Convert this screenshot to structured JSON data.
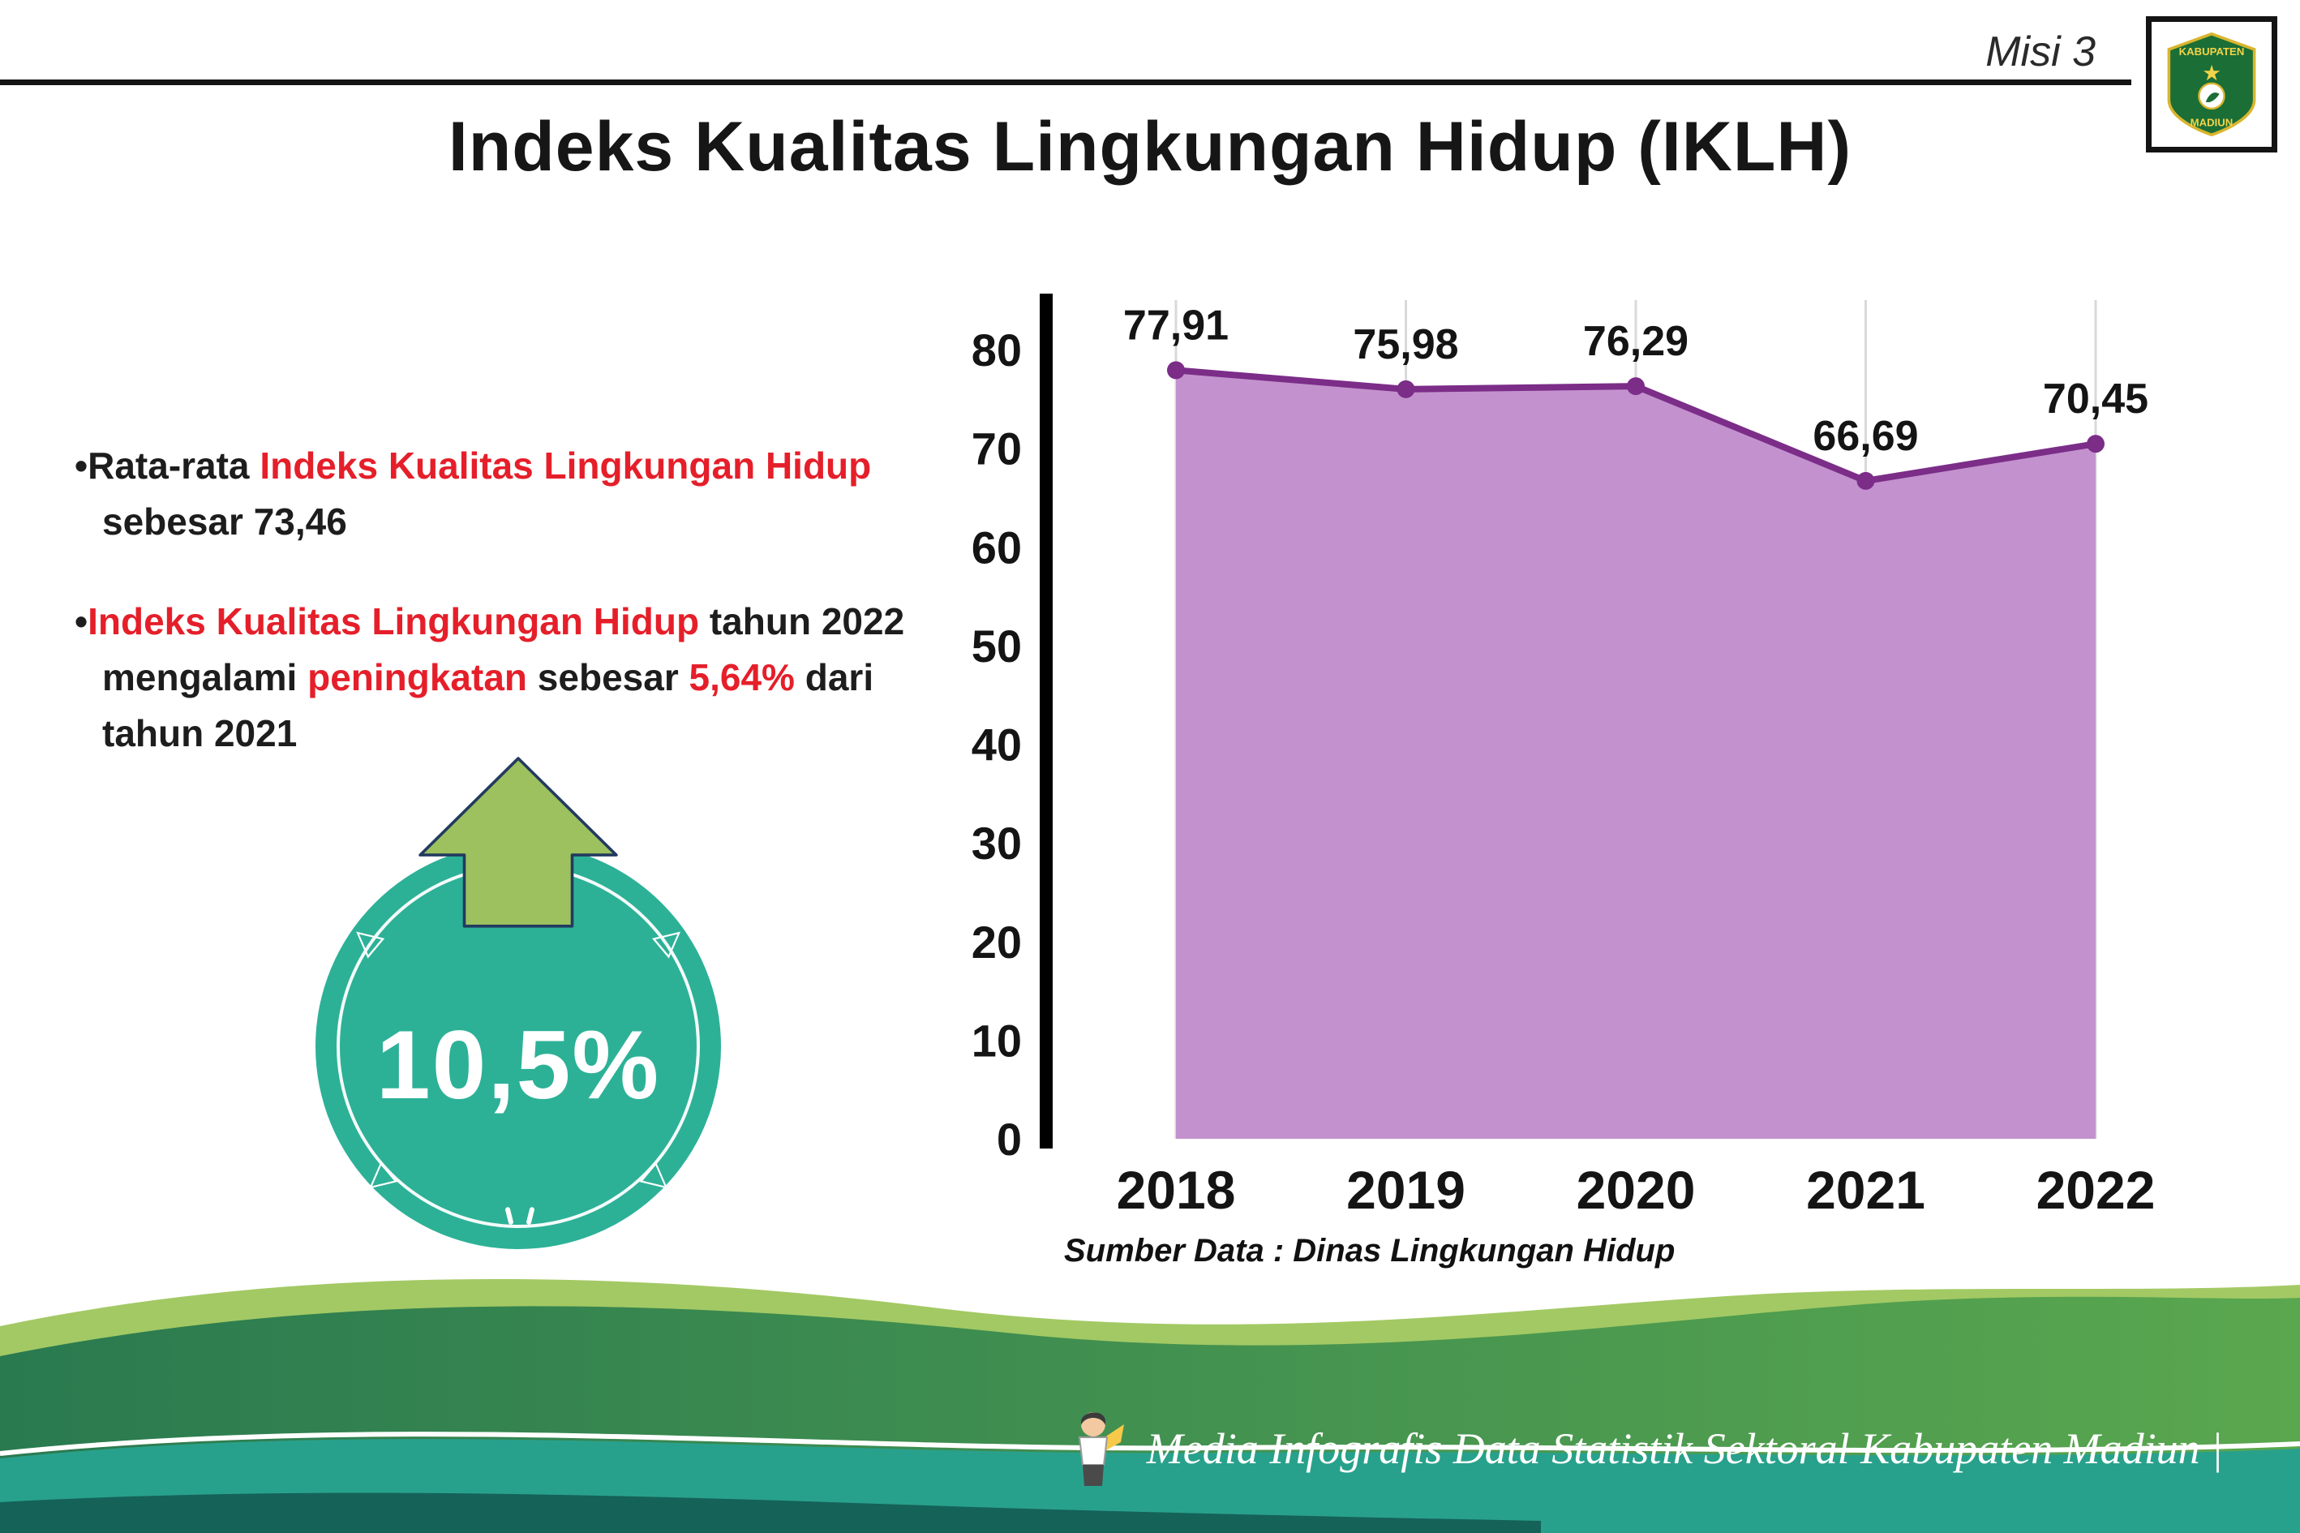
{
  "page": {
    "misi": "Misi 3",
    "title": "Indeks Kualitas Lingkungan Hidup (IKLH)"
  },
  "logo": {
    "line1": "KABUPATEN",
    "line2": "MADIUN",
    "star": "★"
  },
  "bullets": {
    "b1": {
      "marker": "•",
      "t1": "Rata-rata ",
      "t2": "Indeks Kualitas Lingkungan Hidup",
      "t3": " sebesar 73,46"
    },
    "b2": {
      "marker": "•",
      "t1": "Indeks Kualitas Lingkungan Hidup",
      "t2": " tahun 2022 mengalami ",
      "t3": "peningkatan",
      "t4": " sebesar ",
      "t5": "5,64%",
      "t6": " dari tahun 2021"
    }
  },
  "badge": {
    "value": "10,5%",
    "triangle_glyph": "△"
  },
  "chart_data": {
    "type": "area",
    "title": "",
    "xlabel": "",
    "ylabel": "",
    "categories": [
      "2018",
      "2019",
      "2020",
      "2021",
      "2022"
    ],
    "values": [
      77.91,
      75.98,
      76.29,
      66.69,
      70.45
    ],
    "point_labels": [
      "77,91",
      "75,98",
      "76,29",
      "66,69",
      "70,45"
    ],
    "ylim": [
      0,
      80
    ],
    "yticks": [
      0,
      10,
      20,
      30,
      40,
      50,
      60,
      70,
      80
    ],
    "grid": "vertical-light",
    "legend": "none",
    "colors": {
      "fill": "#c392ce",
      "line": "#7b2d88",
      "axis": "#000000",
      "grid": "#d9d9d9"
    },
    "source": "Sumber Data : Dinas Lingkungan Hidup"
  },
  "footer": {
    "text": "Media Infografis Data Statistik Sektoral Kabupaten Madiun |"
  }
}
